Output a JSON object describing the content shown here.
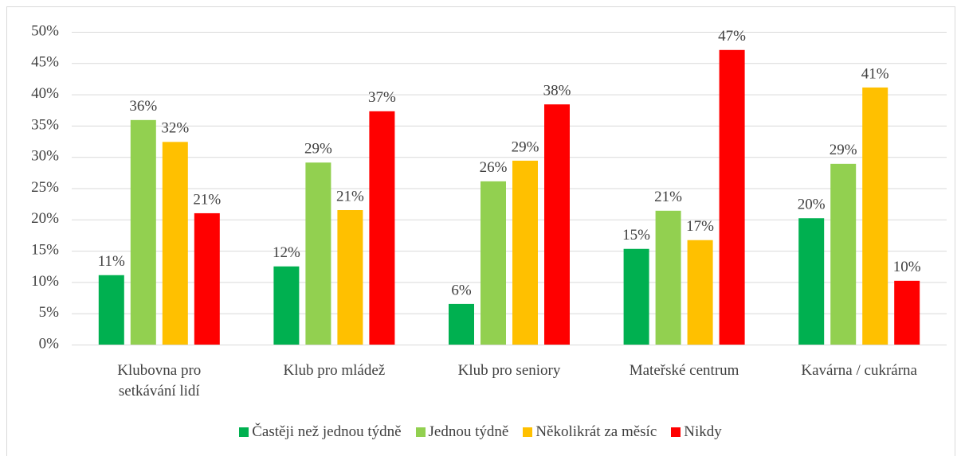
{
  "chart_data": {
    "type": "bar",
    "categories": [
      "Klubovna pro setkávání lidí",
      "Klub pro mládež",
      "Klub pro seniory",
      "Mateřské centrum",
      "Kavárna / cukrárna"
    ],
    "series": [
      {
        "name": "Častěji než jednou týdně",
        "color": "#00b050",
        "values": [
          11.1,
          12.5,
          6.5,
          15.3,
          20.2
        ],
        "value_labels": [
          "11%",
          "12%",
          "6%",
          "15%",
          "20%"
        ]
      },
      {
        "name": "Jednou týdně",
        "color": "#92d050",
        "values": [
          35.9,
          29.1,
          26.1,
          21.4,
          28.9
        ],
        "value_labels": [
          "36%",
          "29%",
          "26%",
          "21%",
          "29%"
        ]
      },
      {
        "name": "Několikrát za měsíc",
        "color": "#ffc000",
        "values": [
          32.4,
          21.5,
          29.4,
          16.7,
          41.1
        ],
        "value_labels": [
          "32%",
          "21%",
          "29%",
          "17%",
          "41%"
        ]
      },
      {
        "name": "Nikdy",
        "color": "#ff0000",
        "values": [
          21.0,
          37.3,
          38.4,
          47.1,
          10.2
        ],
        "value_labels": [
          "21%",
          "37%",
          "38%",
          "47%",
          "10%"
        ]
      }
    ],
    "ylim": [
      0,
      50
    ],
    "yticks": [
      {
        "value": 0,
        "label": "0%"
      },
      {
        "value": 5,
        "label": "5%"
      },
      {
        "value": 10,
        "label": "10%"
      },
      {
        "value": 15,
        "label": "15%"
      },
      {
        "value": 20,
        "label": "20%"
      },
      {
        "value": 25,
        "label": "25%"
      },
      {
        "value": 30,
        "label": "30%"
      },
      {
        "value": 35,
        "label": "35%"
      },
      {
        "value": 40,
        "label": "40%"
      },
      {
        "value": 45,
        "label": "45%"
      },
      {
        "value": 50,
        "label": "50%"
      }
    ],
    "grid": true,
    "legend": "bottom"
  }
}
